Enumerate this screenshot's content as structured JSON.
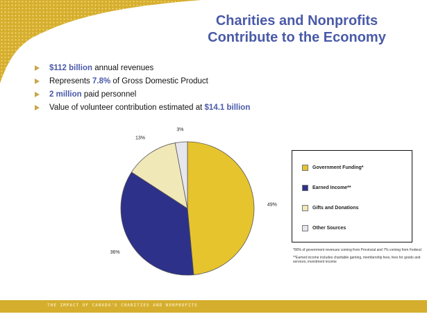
{
  "slide": {
    "title_line1": "Charities and Nonprofits",
    "title_line2": "Contribute to the Economy",
    "bullets": [
      {
        "highlight_pre": "$112 billion",
        "text": " annual revenues",
        "highlight_post": ""
      },
      {
        "highlight_pre": "",
        "text": "Represents ",
        "highlight_post": "7.8%",
        "text_after": " of Gross Domestic Product"
      },
      {
        "highlight_pre": "2 million",
        "text": " paid personnel",
        "highlight_post": ""
      },
      {
        "highlight_pre": "",
        "text": "Value of volunteer contribution estimated at ",
        "highlight_post": "$14.1 billion"
      }
    ],
    "footer_text": "THE IMPACT OF CANADA'S CHARITIES AND NONPROFITS",
    "colors": {
      "title": "#4a5aa8",
      "accent_gold": "#d6ae2e"
    }
  },
  "chart_data": {
    "type": "pie",
    "slices": [
      {
        "label": "Government Funding*",
        "value": 49,
        "value_label": "49%",
        "color": "#e6c42e"
      },
      {
        "label": "Earned Income**",
        "value": 36,
        "value_label": "36%",
        "color": "#2e3189"
      },
      {
        "label": "Gifts and Donations",
        "value": 13,
        "value_label": "13%",
        "color": "#f1e8b8"
      },
      {
        "label": "Other Sources",
        "value": 3,
        "value_label": "3%",
        "color": "#e6e6ee"
      }
    ],
    "legend_position": "right",
    "notes": [
      "*80% of government revenues coming from Provincial and 7% coming from Federal",
      "**Earned income includes charitable gaming, membership fees, fees for goods and services, investment income"
    ]
  }
}
